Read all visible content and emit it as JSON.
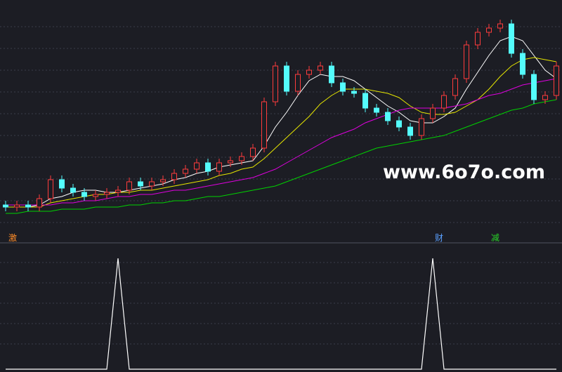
{
  "chart_data": {
    "type": "candlestick",
    "watermark": "www.6o7o.com",
    "ylim": [
      0,
      100
    ],
    "up_color": "#ff3c3c",
    "down_color": "#54fcfc",
    "open": [
      6,
      5,
      6,
      5,
      9,
      18,
      14,
      12,
      10,
      11,
      12,
      13,
      17,
      15,
      17,
      18,
      21,
      23,
      26,
      22,
      26,
      27,
      29,
      33,
      55,
      72,
      60,
      68,
      70,
      72,
      64,
      60,
      59,
      52,
      50,
      46,
      43,
      39,
      47,
      52,
      58,
      66,
      82,
      88,
      90,
      92,
      78,
      68,
      56,
      58
    ],
    "high": [
      8,
      8,
      8,
      11,
      20,
      20,
      16,
      14,
      13,
      14,
      15,
      19,
      19,
      19,
      20,
      23,
      25,
      28,
      28,
      28,
      29,
      31,
      35,
      57,
      74,
      74,
      70,
      72,
      74,
      74,
      66,
      62,
      61,
      54,
      52,
      48,
      45,
      49,
      54,
      60,
      68,
      84,
      90,
      92,
      94,
      94,
      80,
      70,
      60,
      74
    ],
    "low": [
      3,
      3,
      3,
      3,
      7,
      12,
      10,
      8,
      8,
      9,
      10,
      11,
      13,
      13,
      15,
      16,
      19,
      21,
      20,
      20,
      24,
      25,
      27,
      31,
      53,
      58,
      58,
      66,
      68,
      62,
      58,
      57,
      50,
      48,
      44,
      41,
      37,
      37,
      45,
      50,
      56,
      64,
      80,
      86,
      88,
      76,
      66,
      54,
      54,
      56
    ],
    "close": [
      5,
      6,
      5,
      9,
      18,
      14,
      12,
      10,
      11,
      12,
      13,
      17,
      15,
      17,
      18,
      21,
      23,
      26,
      22,
      26,
      27,
      29,
      33,
      55,
      72,
      60,
      68,
      70,
      72,
      64,
      60,
      59,
      52,
      50,
      46,
      43,
      39,
      47,
      52,
      58,
      66,
      82,
      88,
      90,
      92,
      78,
      68,
      56,
      58,
      72
    ],
    "series": [
      {
        "color": "#ffffff",
        "values": [
          5,
          5,
          5,
          6,
          9,
          10,
          12,
          13,
          13,
          12,
          12,
          13,
          14,
          15,
          16,
          18,
          19,
          21,
          22,
          24,
          25,
          26,
          27,
          34,
          43,
          50,
          58,
          65,
          68,
          67,
          67,
          65,
          61,
          57,
          53,
          50,
          46,
          45,
          45,
          48,
          52,
          61,
          69,
          77,
          84,
          86,
          84,
          77,
          70,
          66
        ]
      },
      {
        "color": "#e6e600",
        "values": [
          5,
          5,
          5,
          5,
          7,
          8,
          9,
          10,
          11,
          11,
          12,
          12,
          13,
          13,
          14,
          15,
          16,
          17,
          18,
          20,
          21,
          23,
          24,
          28,
          33,
          38,
          43,
          48,
          54,
          58,
          61,
          61,
          61,
          60,
          59,
          57,
          53,
          50,
          49,
          49,
          50,
          53,
          56,
          61,
          67,
          72,
          75,
          76,
          75,
          74
        ]
      },
      {
        "color": "#e000e0",
        "values": [
          6,
          6,
          6,
          6,
          6,
          7,
          7,
          8,
          8,
          9,
          10,
          10,
          11,
          11,
          12,
          13,
          13,
          14,
          15,
          16,
          17,
          18,
          19,
          21,
          23,
          26,
          29,
          32,
          35,
          38,
          40,
          42,
          45,
          47,
          49,
          51,
          52,
          52,
          52,
          52,
          53,
          54,
          56,
          58,
          59,
          61,
          63,
          64,
          65,
          66
        ]
      },
      {
        "color": "#00d200",
        "values": [
          2,
          2,
          3,
          3,
          3,
          4,
          4,
          4,
          5,
          5,
          5,
          6,
          6,
          7,
          7,
          8,
          8,
          9,
          10,
          10,
          11,
          12,
          13,
          14,
          15,
          17,
          19,
          21,
          23,
          25,
          27,
          29,
          31,
          33,
          34,
          35,
          36,
          37,
          38,
          39,
          41,
          43,
          45,
          47,
          49,
          51,
          52,
          54,
          55,
          56
        ]
      }
    ],
    "signal_labels": [
      "激",
      null,
      null,
      null,
      null,
      null,
      null,
      null,
      null,
      null,
      null,
      null,
      null,
      null,
      null,
      null,
      null,
      null,
      null,
      null,
      null,
      null,
      null,
      null,
      null,
      null,
      null,
      null,
      null,
      null,
      null,
      null,
      null,
      null,
      null,
      null,
      null,
      null,
      "财",
      null,
      null,
      null,
      null,
      "减",
      null,
      null,
      null,
      null,
      null,
      null
    ],
    "indicator": {
      "color": "#ffffff",
      "ylim": [
        0,
        1
      ],
      "values": [
        0,
        0,
        0,
        0,
        0,
        0,
        0,
        0,
        0,
        0,
        1,
        0,
        0,
        0,
        0,
        0,
        0,
        0,
        0,
        0,
        0,
        0,
        0,
        0,
        0,
        0,
        0,
        0,
        0,
        0,
        0,
        0,
        0,
        0,
        0,
        0,
        0,
        0,
        1,
        0,
        0,
        0,
        0,
        0,
        0,
        0,
        0,
        0,
        0,
        0
      ]
    }
  }
}
